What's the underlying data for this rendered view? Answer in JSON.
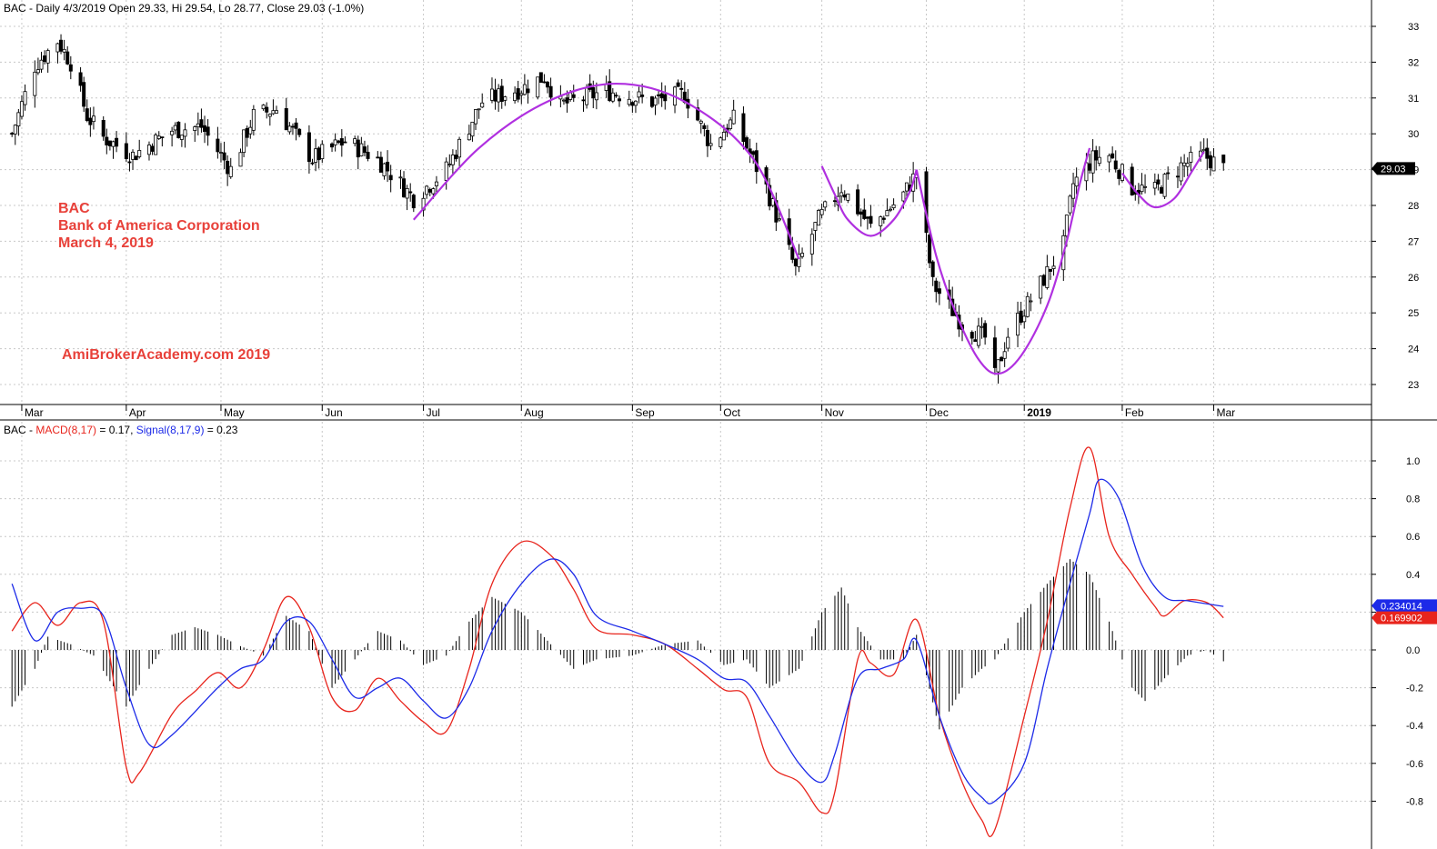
{
  "header": {
    "price_title": "BAC - Daily 4/3/2019 Open 29.33, Hi 29.54, Lo 28.77, Close 29.03 (-1.0%)",
    "macd_prefix": "BAC - ",
    "macd_label": "MACD(8,17)",
    "macd_value": " = 0.17, ",
    "signal_label": "Signal(8,17,9)",
    "signal_value": " = 0.23"
  },
  "annotations": {
    "ticker": "BAC",
    "company": "Bank of America Corporation",
    "date": "March 4, 2019",
    "watermark": "AmiBrokerAcademy.com   2019"
  },
  "colors": {
    "up_candle": "#ffffff",
    "down_candle": "#000000",
    "cup_curve": "#b030e0",
    "macd": "#e8241c",
    "signal": "#1c2ae8",
    "histogram": "#000000",
    "grid": "#c8c8c8",
    "annotation": "#e8413a"
  },
  "chart_data": [
    {
      "type": "candlestick",
      "title": "BAC - Daily 4/3/2019 Open 29.33, Hi 29.54, Lo 28.77, Close 29.03 (-1.0%)",
      "xlabel": "",
      "ylabel": "",
      "x_tick_labels": [
        "Mar",
        "Apr",
        "May",
        "Jun",
        "Jul",
        "Aug",
        "Sep",
        "Oct",
        "Nov",
        "Dec",
        "2019",
        "Feb",
        "Mar"
      ],
      "y_ticks": [
        23,
        24,
        25,
        26,
        27,
        28,
        29,
        30,
        31,
        32,
        33
      ],
      "ylim": [
        22.4,
        33.6
      ],
      "last_close": 29.03,
      "last_close_label": "29.03",
      "grid": true,
      "price_path": [
        [
          "2018-02-26",
          30.0
        ],
        [
          "2018-03-05",
          31.9
        ],
        [
          "2018-03-12",
          32.6
        ],
        [
          "2018-03-16",
          32.0
        ],
        [
          "2018-03-21",
          30.5
        ],
        [
          "2018-03-26",
          29.9
        ],
        [
          "2018-04-04",
          29.4
        ],
        [
          "2018-04-16",
          30.1
        ],
        [
          "2018-04-25",
          30.2
        ],
        [
          "2018-05-04",
          29.0
        ],
        [
          "2018-05-11",
          30.5
        ],
        [
          "2018-05-18",
          30.7
        ],
        [
          "2018-05-29",
          29.3
        ],
        [
          "2018-06-08",
          29.8
        ],
        [
          "2018-06-18",
          29.3
        ],
        [
          "2018-06-29",
          28.2
        ],
        [
          "2018-07-09",
          29.0
        ],
        [
          "2018-07-20",
          30.9
        ],
        [
          "2018-08-02",
          31.3
        ],
        [
          "2018-08-08",
          31.6
        ],
        [
          "2018-08-13",
          30.8
        ],
        [
          "2018-08-27",
          31.2
        ],
        [
          "2018-09-10",
          30.9
        ],
        [
          "2018-09-20",
          31.1
        ],
        [
          "2018-09-28",
          29.7
        ],
        [
          "2018-10-05",
          30.4
        ],
        [
          "2018-10-15",
          28.5
        ],
        [
          "2018-10-24",
          26.2
        ],
        [
          "2018-10-31",
          27.6
        ],
        [
          "2018-11-07",
          28.5
        ],
        [
          "2018-11-16",
          27.4
        ],
        [
          "2018-11-26",
          28.3
        ],
        [
          "2018-11-30",
          28.9
        ],
        [
          "2018-12-05",
          25.8
        ],
        [
          "2018-12-14",
          24.7
        ],
        [
          "2018-12-21",
          24.3
        ],
        [
          "2018-12-24",
          23.2
        ],
        [
          "2018-12-28",
          24.4
        ],
        [
          "2019-01-07",
          25.8
        ],
        [
          "2019-01-14",
          26.9
        ],
        [
          "2019-01-17",
          28.6
        ],
        [
          "2019-01-23",
          29.3
        ],
        [
          "2019-01-28",
          29.4
        ],
        [
          "2019-02-04",
          28.5
        ],
        [
          "2019-02-11",
          28.4
        ],
        [
          "2019-02-19",
          29.1
        ],
        [
          "2019-02-26",
          29.4
        ],
        [
          "2019-03-04",
          29.03
        ]
      ],
      "cup_curve_segments": [
        [
          [
            "2018-06-29",
            27.6
          ],
          [
            "2018-07-19",
            29.6
          ],
          [
            "2018-08-09",
            30.9
          ],
          [
            "2018-08-30",
            31.4
          ],
          [
            "2018-09-20",
            30.9
          ],
          [
            "2018-10-11",
            29.3
          ],
          [
            "2018-10-25",
            26.5
          ]
        ],
        [
          [
            "2018-11-01",
            29.1
          ],
          [
            "2018-11-05",
            28.3
          ],
          [
            "2018-11-09",
            27.6
          ],
          [
            "2018-11-16",
            27.15
          ],
          [
            "2018-11-23",
            27.6
          ],
          [
            "2018-11-28",
            28.4
          ],
          [
            "2018-11-30",
            29.0
          ]
        ],
        [
          [
            "2018-11-30",
            29.0
          ],
          [
            "2018-12-06",
            26.6
          ],
          [
            "2018-12-12",
            25.0
          ],
          [
            "2018-12-19",
            23.7
          ],
          [
            "2018-12-25",
            23.3
          ],
          [
            "2019-01-01",
            23.8
          ],
          [
            "2019-01-09",
            25.2
          ],
          [
            "2019-01-15",
            27.0
          ],
          [
            "2019-01-19",
            28.6
          ],
          [
            "2019-01-22",
            29.6
          ]
        ],
        [
          [
            "2019-02-01",
            28.9
          ],
          [
            "2019-02-06",
            28.3
          ],
          [
            "2019-02-11",
            27.95
          ],
          [
            "2019-02-17",
            28.2
          ],
          [
            "2019-02-22",
            28.9
          ],
          [
            "2019-02-26",
            29.5
          ]
        ]
      ]
    },
    {
      "type": "line",
      "title": "BAC - MACD(8,17) = 0.17, Signal(8,17,9) = 0.23",
      "xlabel": "",
      "ylabel": "",
      "y_ticks": [
        -0.8,
        -0.6,
        -0.4,
        -0.2,
        0.0,
        0.2,
        0.4,
        0.6,
        0.8,
        1.0
      ],
      "ylim": [
        -1.0,
        1.15
      ],
      "grid": true,
      "series": [
        {
          "name": "MACD(8,17)",
          "value_label": "0.169902",
          "points": [
            [
              "2018-02-26",
              0.1
            ],
            [
              "2018-03-05",
              0.25
            ],
            [
              "2018-03-12",
              0.13
            ],
            [
              "2018-03-19",
              0.25
            ],
            [
              "2018-03-26",
              0.15
            ],
            [
              "2018-04-02",
              -0.62
            ],
            [
              "2018-04-06",
              -0.65
            ],
            [
              "2018-04-16",
              -0.34
            ],
            [
              "2018-04-23",
              -0.22
            ],
            [
              "2018-04-30",
              -0.12
            ],
            [
              "2018-05-07",
              -0.2
            ],
            [
              "2018-05-14",
              0.0
            ],
            [
              "2018-05-21",
              0.28
            ],
            [
              "2018-05-28",
              0.12
            ],
            [
              "2018-06-04",
              -0.25
            ],
            [
              "2018-06-11",
              -0.32
            ],
            [
              "2018-06-18",
              -0.15
            ],
            [
              "2018-06-25",
              -0.27
            ],
            [
              "2018-07-02",
              -0.38
            ],
            [
              "2018-07-09",
              -0.43
            ],
            [
              "2018-07-16",
              -0.1
            ],
            [
              "2018-07-23",
              0.35
            ],
            [
              "2018-08-01",
              0.57
            ],
            [
              "2018-08-10",
              0.5
            ],
            [
              "2018-08-17",
              0.32
            ],
            [
              "2018-08-24",
              0.11
            ],
            [
              "2018-09-04",
              0.08
            ],
            [
              "2018-09-14",
              0.03
            ],
            [
              "2018-09-24",
              -0.1
            ],
            [
              "2018-10-02",
              -0.21
            ],
            [
              "2018-10-09",
              -0.25
            ],
            [
              "2018-10-16",
              -0.6
            ],
            [
              "2018-10-25",
              -0.7
            ],
            [
              "2018-11-01",
              -0.86
            ],
            [
              "2018-11-05",
              -0.75
            ],
            [
              "2018-11-12",
              -0.05
            ],
            [
              "2018-11-16",
              -0.07
            ],
            [
              "2018-11-23",
              -0.13
            ],
            [
              "2018-11-30",
              0.16
            ],
            [
              "2018-12-07",
              -0.35
            ],
            [
              "2018-12-14",
              -0.7
            ],
            [
              "2018-12-20",
              -0.9
            ],
            [
              "2018-12-24",
              -0.95
            ],
            [
              "2019-01-02",
              -0.35
            ],
            [
              "2019-01-09",
              0.15
            ],
            [
              "2019-01-16",
              0.75
            ],
            [
              "2019-01-22",
              1.07
            ],
            [
              "2019-01-28",
              0.6
            ],
            [
              "2019-02-04",
              0.4
            ],
            [
              "2019-02-11",
              0.23
            ],
            [
              "2019-02-14",
              0.18
            ],
            [
              "2019-02-20",
              0.26
            ],
            [
              "2019-02-27",
              0.25
            ],
            [
              "2019-03-04",
              0.17
            ]
          ]
        },
        {
          "name": "Signal(8,17,9)",
          "value_label": "0.234014",
          "points": [
            [
              "2018-02-26",
              0.35
            ],
            [
              "2018-03-05",
              0.05
            ],
            [
              "2018-03-12",
              0.2
            ],
            [
              "2018-03-19",
              0.22
            ],
            [
              "2018-03-26",
              0.18
            ],
            [
              "2018-04-02",
              -0.2
            ],
            [
              "2018-04-09",
              -0.5
            ],
            [
              "2018-04-16",
              -0.45
            ],
            [
              "2018-04-30",
              -0.2
            ],
            [
              "2018-05-07",
              -0.1
            ],
            [
              "2018-05-14",
              -0.05
            ],
            [
              "2018-05-21",
              0.15
            ],
            [
              "2018-05-28",
              0.15
            ],
            [
              "2018-06-04",
              -0.05
            ],
            [
              "2018-06-11",
              -0.25
            ],
            [
              "2018-06-18",
              -0.2
            ],
            [
              "2018-06-25",
              -0.15
            ],
            [
              "2018-07-02",
              -0.27
            ],
            [
              "2018-07-09",
              -0.36
            ],
            [
              "2018-07-16",
              -0.2
            ],
            [
              "2018-07-23",
              0.1
            ],
            [
              "2018-08-01",
              0.35
            ],
            [
              "2018-08-10",
              0.48
            ],
            [
              "2018-08-17",
              0.4
            ],
            [
              "2018-08-24",
              0.18
            ],
            [
              "2018-09-04",
              0.1
            ],
            [
              "2018-09-14",
              0.03
            ],
            [
              "2018-09-24",
              -0.05
            ],
            [
              "2018-10-02",
              -0.15
            ],
            [
              "2018-10-09",
              -0.17
            ],
            [
              "2018-10-16",
              -0.35
            ],
            [
              "2018-10-25",
              -0.6
            ],
            [
              "2018-11-01",
              -0.7
            ],
            [
              "2018-11-05",
              -0.55
            ],
            [
              "2018-11-12",
              -0.15
            ],
            [
              "2018-11-19",
              -0.1
            ],
            [
              "2018-11-26",
              -0.05
            ],
            [
              "2018-11-30",
              0.05
            ],
            [
              "2018-12-07",
              -0.35
            ],
            [
              "2018-12-14",
              -0.65
            ],
            [
              "2018-12-20",
              -0.78
            ],
            [
              "2018-12-24",
              -0.8
            ],
            [
              "2019-01-02",
              -0.6
            ],
            [
              "2019-01-09",
              -0.1
            ],
            [
              "2019-01-16",
              0.35
            ],
            [
              "2019-01-22",
              0.72
            ],
            [
              "2019-01-25",
              0.9
            ],
            [
              "2019-01-31",
              0.8
            ],
            [
              "2019-02-07",
              0.45
            ],
            [
              "2019-02-14",
              0.28
            ],
            [
              "2019-02-21",
              0.26
            ],
            [
              "2019-03-04",
              0.23
            ]
          ]
        },
        {
          "name": "Histogram",
          "type": "bar",
          "points": [
            [
              "2018-02-26",
              -0.3
            ],
            [
              "2018-03-05",
              -0.1
            ],
            [
              "2018-03-09",
              0.07
            ],
            [
              "2018-03-16",
              0.03
            ],
            [
              "2018-03-23",
              -0.03
            ],
            [
              "2018-04-02",
              -0.3
            ],
            [
              "2018-04-09",
              -0.1
            ],
            [
              "2018-04-16",
              0.08
            ],
            [
              "2018-04-23",
              0.12
            ],
            [
              "2018-04-30",
              0.08
            ],
            [
              "2018-05-07",
              0.02
            ],
            [
              "2018-05-14",
              -0.03
            ],
            [
              "2018-05-21",
              0.18
            ],
            [
              "2018-05-28",
              0.1
            ],
            [
              "2018-06-04",
              -0.2
            ],
            [
              "2018-06-11",
              -0.05
            ],
            [
              "2018-06-18",
              0.1
            ],
            [
              "2018-06-25",
              0.05
            ],
            [
              "2018-07-02",
              -0.08
            ],
            [
              "2018-07-09",
              -0.03
            ],
            [
              "2018-07-16",
              0.15
            ],
            [
              "2018-07-23",
              0.28
            ],
            [
              "2018-08-01",
              0.2
            ],
            [
              "2018-08-10",
              0.03
            ],
            [
              "2018-08-17",
              -0.1
            ],
            [
              "2018-08-24",
              -0.05
            ],
            [
              "2018-09-04",
              -0.03
            ],
            [
              "2018-09-14",
              0.03
            ],
            [
              "2018-09-24",
              0.05
            ],
            [
              "2018-10-02",
              -0.08
            ],
            [
              "2018-10-09",
              -0.05
            ],
            [
              "2018-10-16",
              -0.2
            ],
            [
              "2018-10-25",
              -0.1
            ],
            [
              "2018-11-01",
              0.2
            ],
            [
              "2018-11-07",
              0.33
            ],
            [
              "2018-11-12",
              0.12
            ],
            [
              "2018-11-19",
              -0.05
            ],
            [
              "2018-11-26",
              -0.05
            ],
            [
              "2018-11-30",
              0.08
            ],
            [
              "2018-12-07",
              -0.42
            ],
            [
              "2018-12-14",
              -0.2
            ],
            [
              "2018-12-20",
              -0.1
            ],
            [
              "2018-12-24",
              -0.05
            ],
            [
              "2019-01-02",
              0.2
            ],
            [
              "2019-01-09",
              0.35
            ],
            [
              "2019-01-16",
              0.48
            ],
            [
              "2019-01-22",
              0.4
            ],
            [
              "2019-01-28",
              0.15
            ],
            [
              "2019-02-04",
              -0.2
            ],
            [
              "2019-02-08",
              -0.27
            ],
            [
              "2019-02-14",
              -0.15
            ],
            [
              "2019-02-21",
              -0.03
            ],
            [
              "2019-02-27",
              0.0
            ],
            [
              "2019-03-04",
              -0.06
            ]
          ]
        }
      ]
    }
  ]
}
